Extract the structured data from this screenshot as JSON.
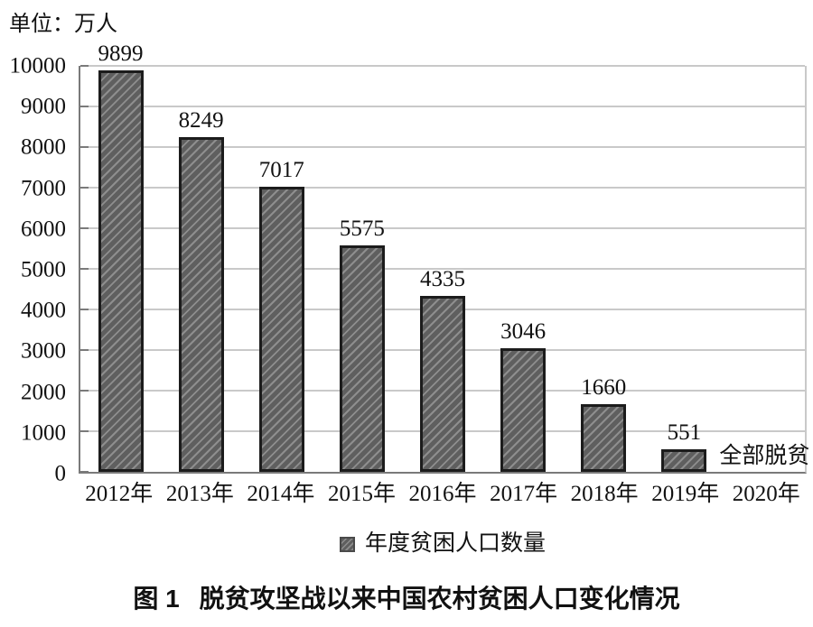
{
  "unit_label": "单位：万人",
  "chart_data": {
    "type": "bar",
    "title": "脱贫攻坚战以来中国农村贫困人口变化情况",
    "unit": "万人",
    "categories": [
      "2012年",
      "2013年",
      "2014年",
      "2015年",
      "2016年",
      "2017年",
      "2018年",
      "2019年",
      "2020年"
    ],
    "values": [
      9899,
      8249,
      7017,
      5575,
      4335,
      3046,
      1660,
      551,
      null
    ],
    "bar_value_labels": [
      "9899",
      "8249",
      "7017",
      "5575",
      "4335",
      "3046",
      "1660",
      "551",
      ""
    ],
    "annotations": [
      {
        "category": "2020年",
        "text": "全部脱贫"
      }
    ],
    "ylim": [
      0,
      10000
    ],
    "yticks": [
      0,
      1000,
      2000,
      3000,
      4000,
      5000,
      6000,
      7000,
      8000,
      9000,
      10000
    ],
    "grid": true,
    "legend_position": "bottom",
    "legend": [
      {
        "label": "年度贫困人口数量",
        "swatch": "diagonal-hatch"
      }
    ],
    "colors": {
      "bar_fill": "#5f5f5f",
      "bar_hatch": "#8e8e8e",
      "bar_border": "#1c1c1c",
      "gridline": "#c9c9c9",
      "axis": "#7a7a7a",
      "text": "#111111"
    }
  },
  "caption": {
    "prefix": "图 1",
    "title": "脱贫攻坚战以来中国农村贫困人口变化情况"
  }
}
